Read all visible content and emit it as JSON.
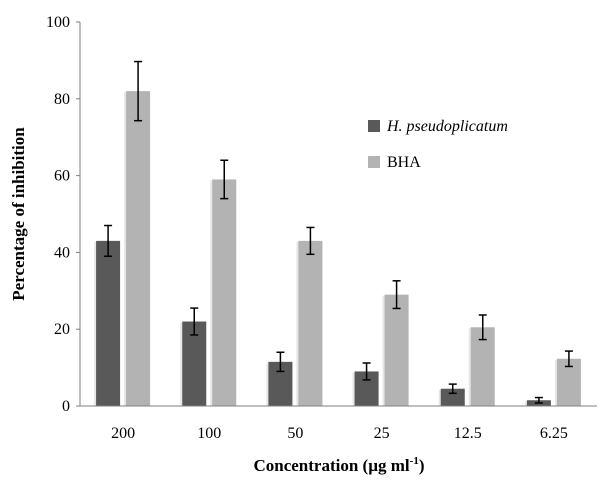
{
  "chart_data": {
    "type": "bar",
    "xlabel": "Concentration (µg ml",
    "xlabel_sup": "-1",
    "xlabel_suffix": ")",
    "ylabel": "Percentage of inhibition",
    "ylim": [
      0,
      100
    ],
    "yticks": [
      "0",
      "20",
      "40",
      "60",
      "80",
      "100"
    ],
    "grid": false,
    "legend": "right",
    "categories": [
      "200",
      "100",
      "50",
      "25",
      "12.5",
      "6.25"
    ],
    "series": [
      {
        "name": "H. pseudoplicatum",
        "color": "#595959",
        "values": [
          43,
          22,
          11.5,
          9,
          4.5,
          1.5
        ],
        "errors": [
          4,
          3.5,
          2.5,
          2.2,
          1.2,
          0.7
        ]
      },
      {
        "name": "BHA",
        "color": "#b3b3b3",
        "values": [
          82,
          59,
          43,
          29,
          20.5,
          12.3
        ],
        "errors": [
          7.7,
          5,
          3.5,
          3.6,
          3.2,
          2
        ]
      }
    ]
  }
}
